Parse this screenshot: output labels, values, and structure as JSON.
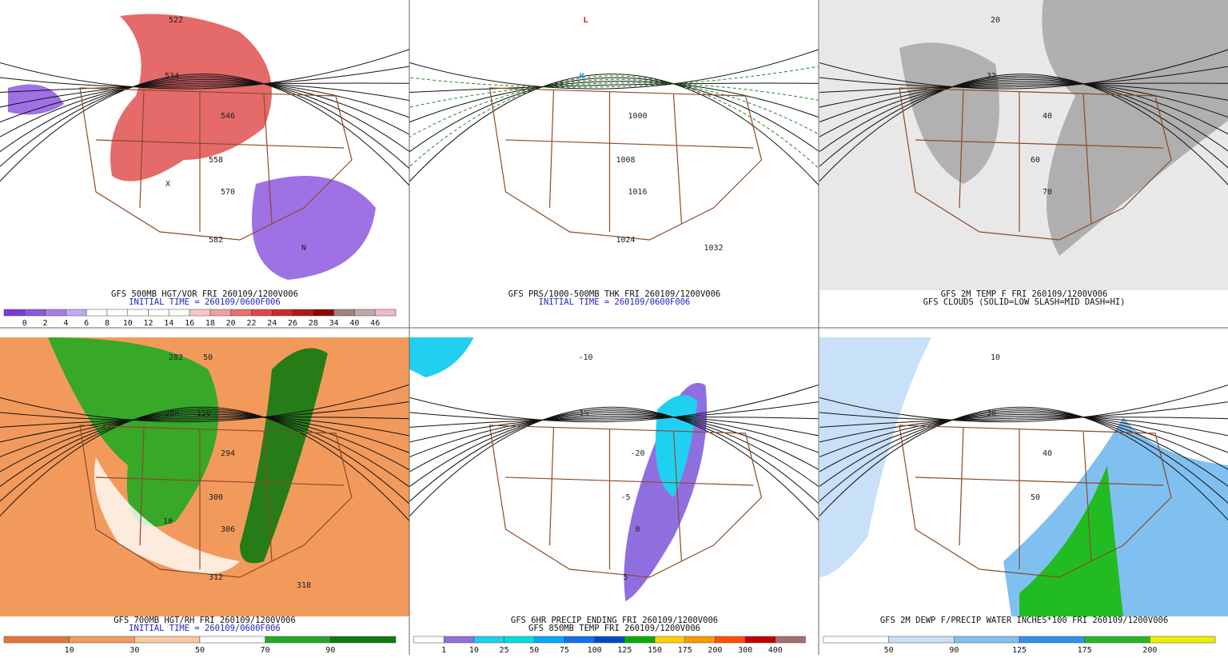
{
  "panels": [
    {
      "caption": [
        "GFS 500MB HGT/VOR FRI 260109/1200V006",
        "INITIAL TIME = 260109/0600F006"
      ],
      "map_labels": [
        "522",
        "534",
        "546",
        "558",
        "570",
        "582",
        "N",
        "X"
      ],
      "colorbar": {
        "labels": [
          "0",
          "2",
          "4",
          "6",
          "8",
          "10",
          "12",
          "14",
          "16",
          "18",
          "20",
          "22",
          "24",
          "26",
          "28",
          "34",
          "40",
          "46"
        ],
        "colors": [
          "#7a3cd8",
          "#8d58e0",
          "#a77ce8",
          "#c4a8f2",
          "#ffffff",
          "#ffffff",
          "#ffffff",
          "#ffffff",
          "#ffffff",
          "#f8c8c8",
          "#f0a0a0",
          "#e87070",
          "#e04848",
          "#d02828",
          "#b01818",
          "#900000",
          "#a08080",
          "#c0a8a8",
          "#f0b8c8"
        ]
      }
    },
    {
      "caption": [
        "GFS PRS/1000-500MB THK FRI 260109/1200V006",
        "INITIAL TIME = 260109/0600F006"
      ],
      "map_labels": [
        "L",
        "H",
        "1000",
        "1008",
        "1016",
        "1024",
        "1032"
      ]
    },
    {
      "caption": [
        "GFS 2M TEMP F FRI 260109/1200V006",
        "GFS CLOUDS (SOLID=LOW SLASH=MID DASH=HI)"
      ],
      "map_labels": [
        "20",
        "32",
        "40",
        "60",
        "70"
      ]
    },
    {
      "caption": [
        "GFS 700MB HGT/RH FRI 260109/1200V006",
        "INITIAL TIME = 260109/0600F006"
      ],
      "map_labels": [
        "282",
        "288",
        "294",
        "300",
        "306",
        "312",
        "318",
        "10",
        "50",
        "150"
      ],
      "colorbar": {
        "labels": [
          "10",
          "30",
          "50",
          "70",
          "90"
        ],
        "colors": [
          "#e87438",
          "#f29a60",
          "#f8c8a0",
          "#ffffff",
          "#22aa22",
          "#0f7a0f"
        ]
      }
    },
    {
      "caption": [
        "GFS 6HR PRECIP ENDING FRI 260109/1200V006",
        "GFS 850MB TEMP FRI 260109/1200V006"
      ],
      "map_labels": [
        "-10",
        "-15",
        "-20",
        "-5",
        "0",
        "5"
      ],
      "colorbar": {
        "labels": [
          "1",
          "10",
          "25",
          "50",
          "75",
          "100",
          "125",
          "150",
          "175",
          "200",
          "300",
          "400"
        ],
        "colors": [
          "#ffffff",
          "#8f6fe0",
          "#20d0f0",
          "#00e0d8",
          "#00a8ff",
          "#1070f0",
          "#0048c8",
          "#00b000",
          "#ffd000",
          "#ff9800",
          "#ff5000",
          "#c00000",
          "#a07070"
        ]
      }
    },
    {
      "caption": [
        "GFS 2M DEWP F/PRECIP WATER INCHES*100 FRI 260109/1200V006"
      ],
      "map_labels": [
        "10",
        "30",
        "40",
        "50"
      ],
      "colorbar": {
        "labels": [
          "50",
          "90",
          "125",
          "175",
          "200"
        ],
        "colors": [
          "#ffffff",
          "#c8e0f8",
          "#80c0f0",
          "#3090f0",
          "#22bb22",
          "#eeee00"
        ]
      }
    }
  ]
}
